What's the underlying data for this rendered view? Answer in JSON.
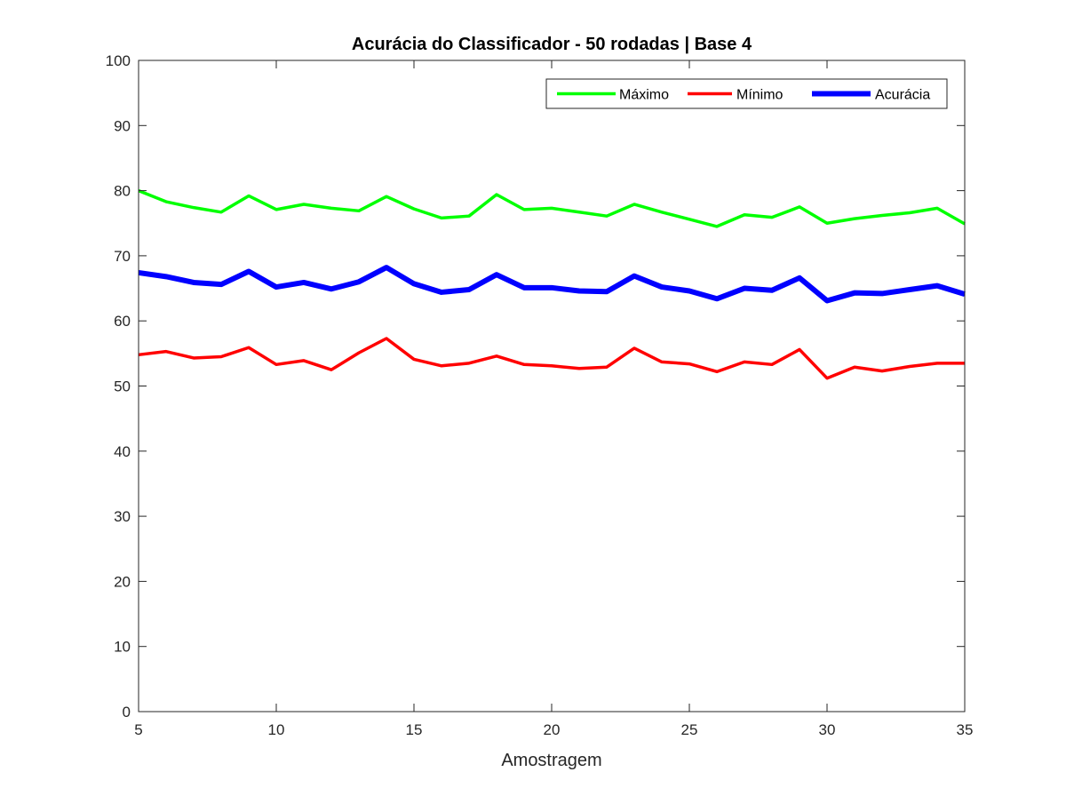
{
  "chart_data": {
    "type": "line",
    "title": "Acurácia do Classificador - 50 rodadas | Base 4",
    "xlabel": "Amostragem",
    "ylabel": "",
    "xlim": [
      5,
      35
    ],
    "ylim": [
      0,
      100
    ],
    "xticks": [
      5,
      10,
      15,
      20,
      25,
      30,
      35
    ],
    "yticks": [
      0,
      10,
      20,
      30,
      40,
      50,
      60,
      70,
      80,
      90,
      100
    ],
    "grid": false,
    "legend_position": "top-right",
    "x": [
      5,
      6,
      7,
      8,
      9,
      10,
      11,
      12,
      13,
      14,
      15,
      16,
      17,
      18,
      19,
      20,
      21,
      22,
      23,
      24,
      25,
      26,
      27,
      28,
      29,
      30,
      31,
      32,
      33,
      34,
      35
    ],
    "series": [
      {
        "name": "Máximo",
        "color": "#00ff00",
        "values": [
          80.0,
          78.3,
          77.4,
          76.7,
          79.2,
          77.1,
          77.9,
          77.3,
          76.9,
          79.1,
          77.2,
          75.8,
          76.1,
          79.4,
          77.1,
          77.3,
          76.7,
          76.1,
          77.9,
          76.7,
          75.6,
          74.5,
          76.3,
          75.9,
          77.5,
          75.0,
          75.7,
          76.2,
          76.6,
          77.3,
          74.9
        ]
      },
      {
        "name": "Mínimo",
        "color": "#ff0000",
        "values": [
          54.8,
          55.3,
          54.3,
          54.5,
          55.9,
          53.3,
          53.9,
          52.5,
          55.1,
          57.3,
          54.1,
          53.1,
          53.5,
          54.6,
          53.3,
          53.1,
          52.7,
          52.9,
          55.8,
          53.7,
          53.4,
          52.2,
          53.7,
          53.3,
          55.6,
          51.2,
          52.9,
          52.3,
          53.0,
          53.5,
          53.5
        ]
      },
      {
        "name": "Acurácia",
        "color": "#0000ff",
        "values": [
          67.4,
          66.8,
          65.9,
          65.6,
          67.6,
          65.2,
          65.9,
          64.9,
          66.0,
          68.2,
          65.7,
          64.4,
          64.8,
          67.1,
          65.1,
          65.1,
          64.6,
          64.5,
          66.9,
          65.2,
          64.6,
          63.4,
          65.0,
          64.7,
          66.6,
          63.1,
          64.3,
          64.2,
          64.8,
          65.4,
          64.1
        ]
      }
    ]
  }
}
